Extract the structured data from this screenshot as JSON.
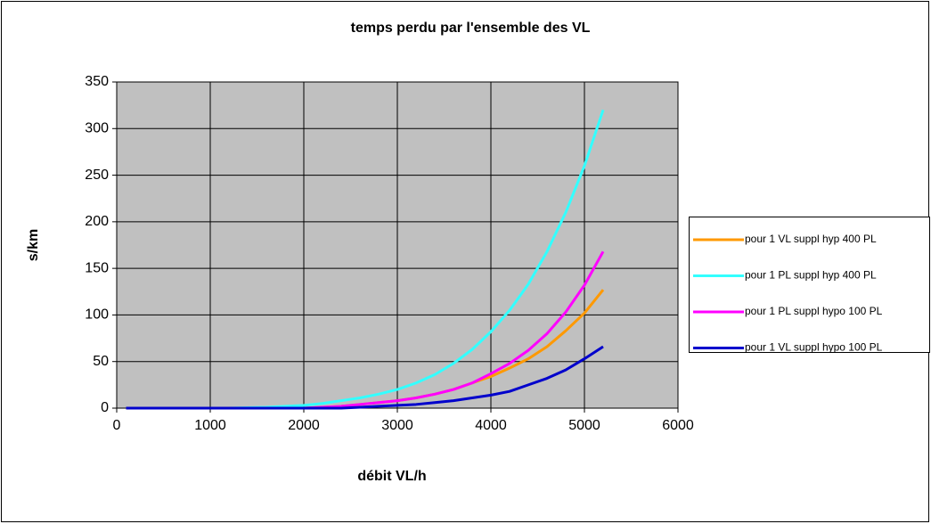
{
  "chart_data": {
    "type": "line",
    "title": "temps perdu par l'ensemble des VL",
    "x_label": "débit VL/h",
    "y_label": "s/km",
    "x": [
      100,
      400,
      800,
      1200,
      1600,
      2000,
      2200,
      2400,
      2600,
      2800,
      3000,
      3200,
      3400,
      3600,
      3800,
      4000,
      4200,
      4400,
      4600,
      4800,
      5000,
      5200
    ],
    "series": [
      {
        "name": "pour 1 VL suppl hyp 400 PL",
        "color": "#ff9900",
        "values": [
          0,
          0,
          0,
          0,
          0,
          0,
          1,
          2,
          4,
          6,
          8,
          11,
          15,
          20,
          27,
          34,
          43,
          53,
          66,
          83,
          102,
          127
        ]
      },
      {
        "name": "pour 1 PL suppl hyp 400 PL",
        "color": "#33ffff",
        "values": [
          0,
          0,
          0,
          0,
          1,
          3,
          5,
          8,
          11,
          15,
          20,
          27,
          36,
          48,
          63,
          82,
          105,
          133,
          168,
          210,
          260,
          320
        ]
      },
      {
        "name": "pour 1 PL suppl hypo 100 PL",
        "color": "#ff00ff",
        "values": [
          0,
          0,
          0,
          0,
          0,
          0,
          1,
          2,
          4,
          6,
          8,
          11,
          15,
          20,
          27,
          37,
          48,
          62,
          80,
          103,
          132,
          168
        ]
      },
      {
        "name": "pour 1 VL suppl hypo 100 PL",
        "color": "#0000cc",
        "values": [
          0,
          0,
          0,
          0,
          0,
          0,
          0,
          0,
          1,
          2,
          3,
          4,
          6,
          8,
          11,
          14,
          18,
          25,
          32,
          41,
          53,
          66
        ]
      }
    ],
    "xlim": [
      0,
      6000
    ],
    "xticks": [
      0,
      1000,
      2000,
      3000,
      4000,
      5000,
      6000
    ],
    "ylim": [
      0,
      350
    ],
    "yticks": [
      0,
      50,
      100,
      150,
      200,
      250,
      300,
      350
    ],
    "grid": true,
    "legend": "right"
  }
}
